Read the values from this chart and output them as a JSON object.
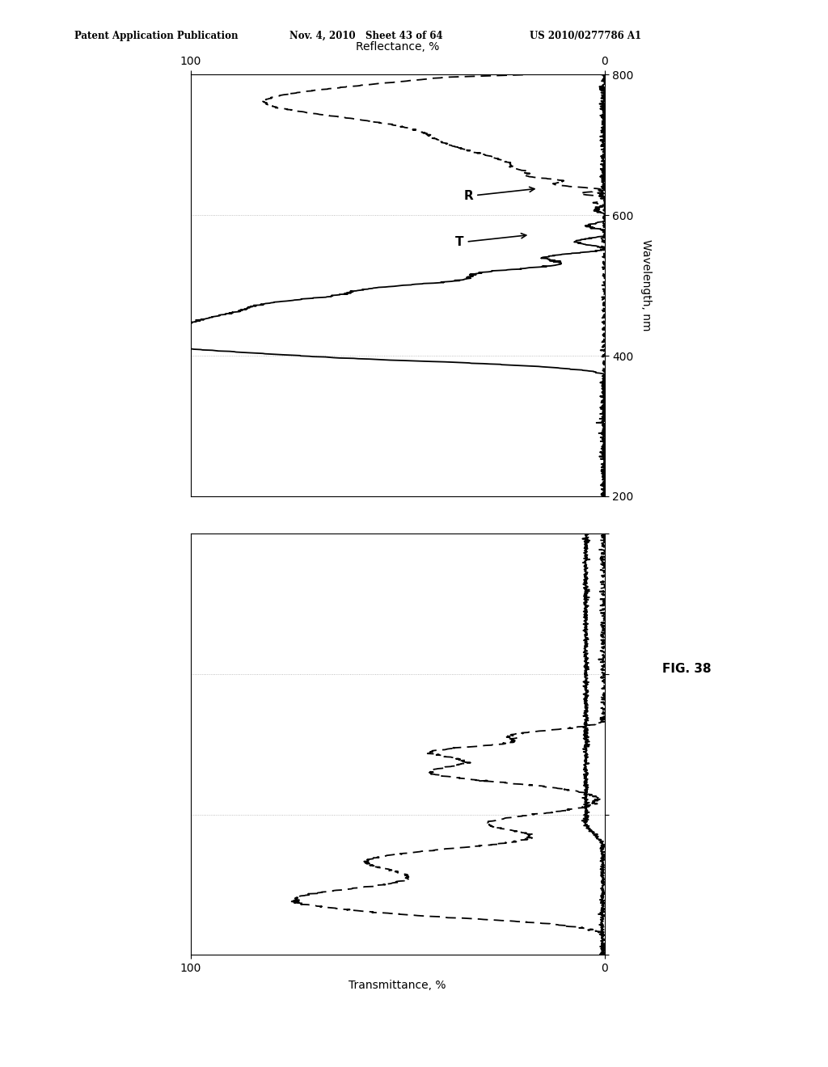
{
  "header_left": "Patent Application Publication",
  "header_mid": "Nov. 4, 2010   Sheet 43 of 64",
  "header_right": "US 2010/0277786 A1",
  "fig_label": "FIG. 38",
  "wavelength_label": "Wavelength, nm",
  "reflectance_label": "Reflectance, %",
  "transmittance_label": "Transmittance, %",
  "annotation_T": "T",
  "annotation_R": "R",
  "wl_min": 200,
  "wl_max": 800,
  "pct_min": 0,
  "pct_max": 100,
  "wl_ticks": [
    200,
    400,
    600,
    800
  ],
  "pct_ticks": [
    0,
    100
  ],
  "background_color": "#ffffff",
  "line_color": "#000000",
  "grid_color": "#999999",
  "grid_style": ":"
}
